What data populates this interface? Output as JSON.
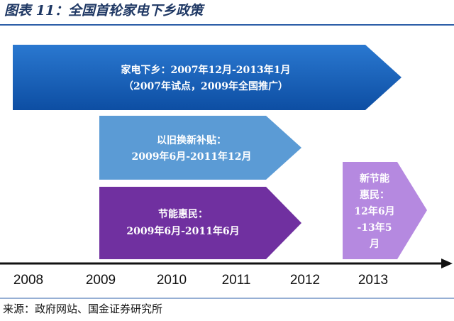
{
  "header": {
    "title": "图表 11：全国首轮家电下乡政策"
  },
  "arrows": [
    {
      "lines": [
        "家电下乡：2007年12月-2013年1月",
        "（2007年试点，2009年全国推广）"
      ]
    },
    {
      "lines": [
        "以旧换新补贴：",
        "2009年6月-2011年12月"
      ]
    },
    {
      "lines": [
        "节能惠民：",
        "2009年6月-2011年6月"
      ]
    },
    {
      "lines": [
        "新节能",
        "惠民：",
        "12年6月",
        "-13年5",
        "月"
      ]
    }
  ],
  "timeline": {
    "years": [
      "2008",
      "2009",
      "2010",
      "2011",
      "2012",
      "2013"
    ]
  },
  "footer": {
    "source": "来源：政府网站、国金证券研究所"
  }
}
